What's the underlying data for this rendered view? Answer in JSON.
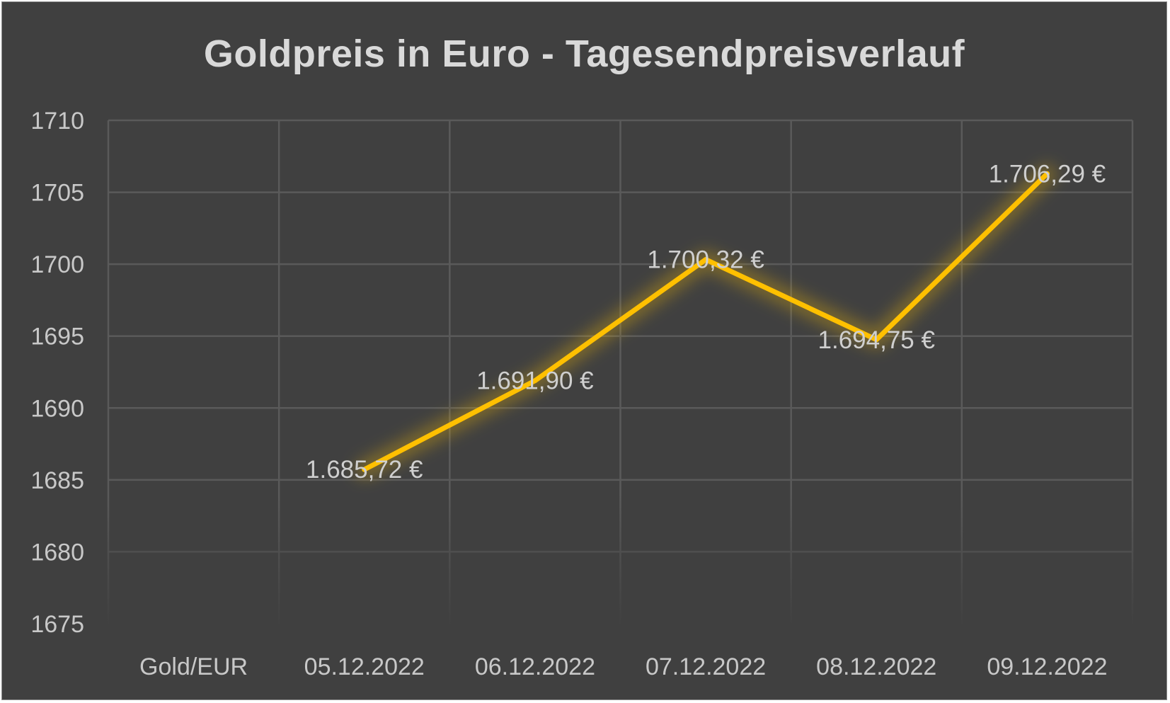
{
  "chart_data": {
    "type": "line",
    "title": "Goldpreis in Euro - Tagesendpreisverlauf",
    "xlabel": "",
    "ylabel": "",
    "categories": [
      "Gold/EUR",
      "05.12.2022",
      "06.12.2022",
      "07.12.2022",
      "08.12.2022",
      "09.12.2022"
    ],
    "series": [
      {
        "values": [
          null,
          1685.72,
          1691.9,
          1700.32,
          1694.75,
          1706.29
        ],
        "labels": [
          "",
          "1.685,72 €",
          "1.691,90 €",
          "1.700,32 €",
          "1.694,75 €",
          "1.706,29 €"
        ],
        "color": "#ffc000"
      }
    ],
    "ylim": [
      1675,
      1710
    ],
    "yticks": [
      1675,
      1680,
      1685,
      1690,
      1695,
      1700,
      1705,
      1710
    ],
    "ytick_labels": [
      "1675",
      "1680",
      "1685",
      "1690",
      "1695",
      "1700",
      "1705",
      "1710"
    ],
    "grid": true,
    "legend": "none",
    "colors": {
      "background": "#404040",
      "grid": "#5a5a5a",
      "text": "#c8c8c8",
      "line": "#ffc000"
    }
  }
}
